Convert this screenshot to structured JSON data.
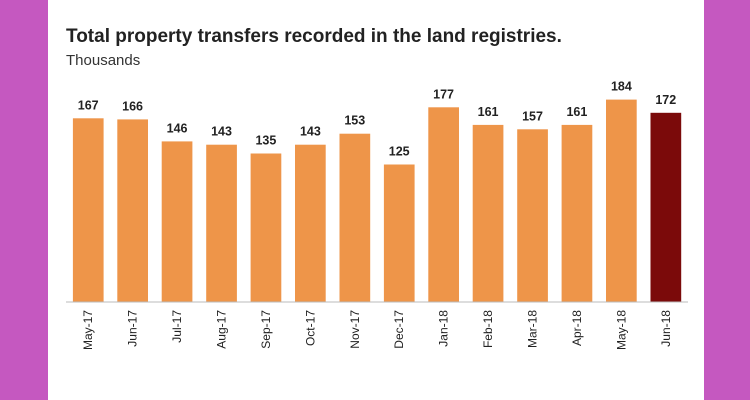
{
  "chart_data": {
    "type": "bar",
    "title": "Total property transfers recorded in the land registries.",
    "subtitle": "Thousands",
    "categories": [
      "May-17",
      "Jun-17",
      "Jul-17",
      "Aug-17",
      "Sep-17",
      "Oct-17",
      "Nov-17",
      "Dec-17",
      "Jan-18",
      "Feb-18",
      "Mar-18",
      "Apr-18",
      "May-18",
      "Jun-18"
    ],
    "values": [
      167,
      166,
      146,
      143,
      135,
      143,
      153,
      125,
      177,
      161,
      157,
      161,
      184,
      172
    ],
    "ylim": [
      0,
      190
    ],
    "grid": false,
    "colors": {
      "bar": "#ee9549",
      "highlight": "#7b0a0a",
      "axis": "#bbbbbb",
      "frame": "#c558c0"
    },
    "highlight_category": "Jun-18"
  }
}
